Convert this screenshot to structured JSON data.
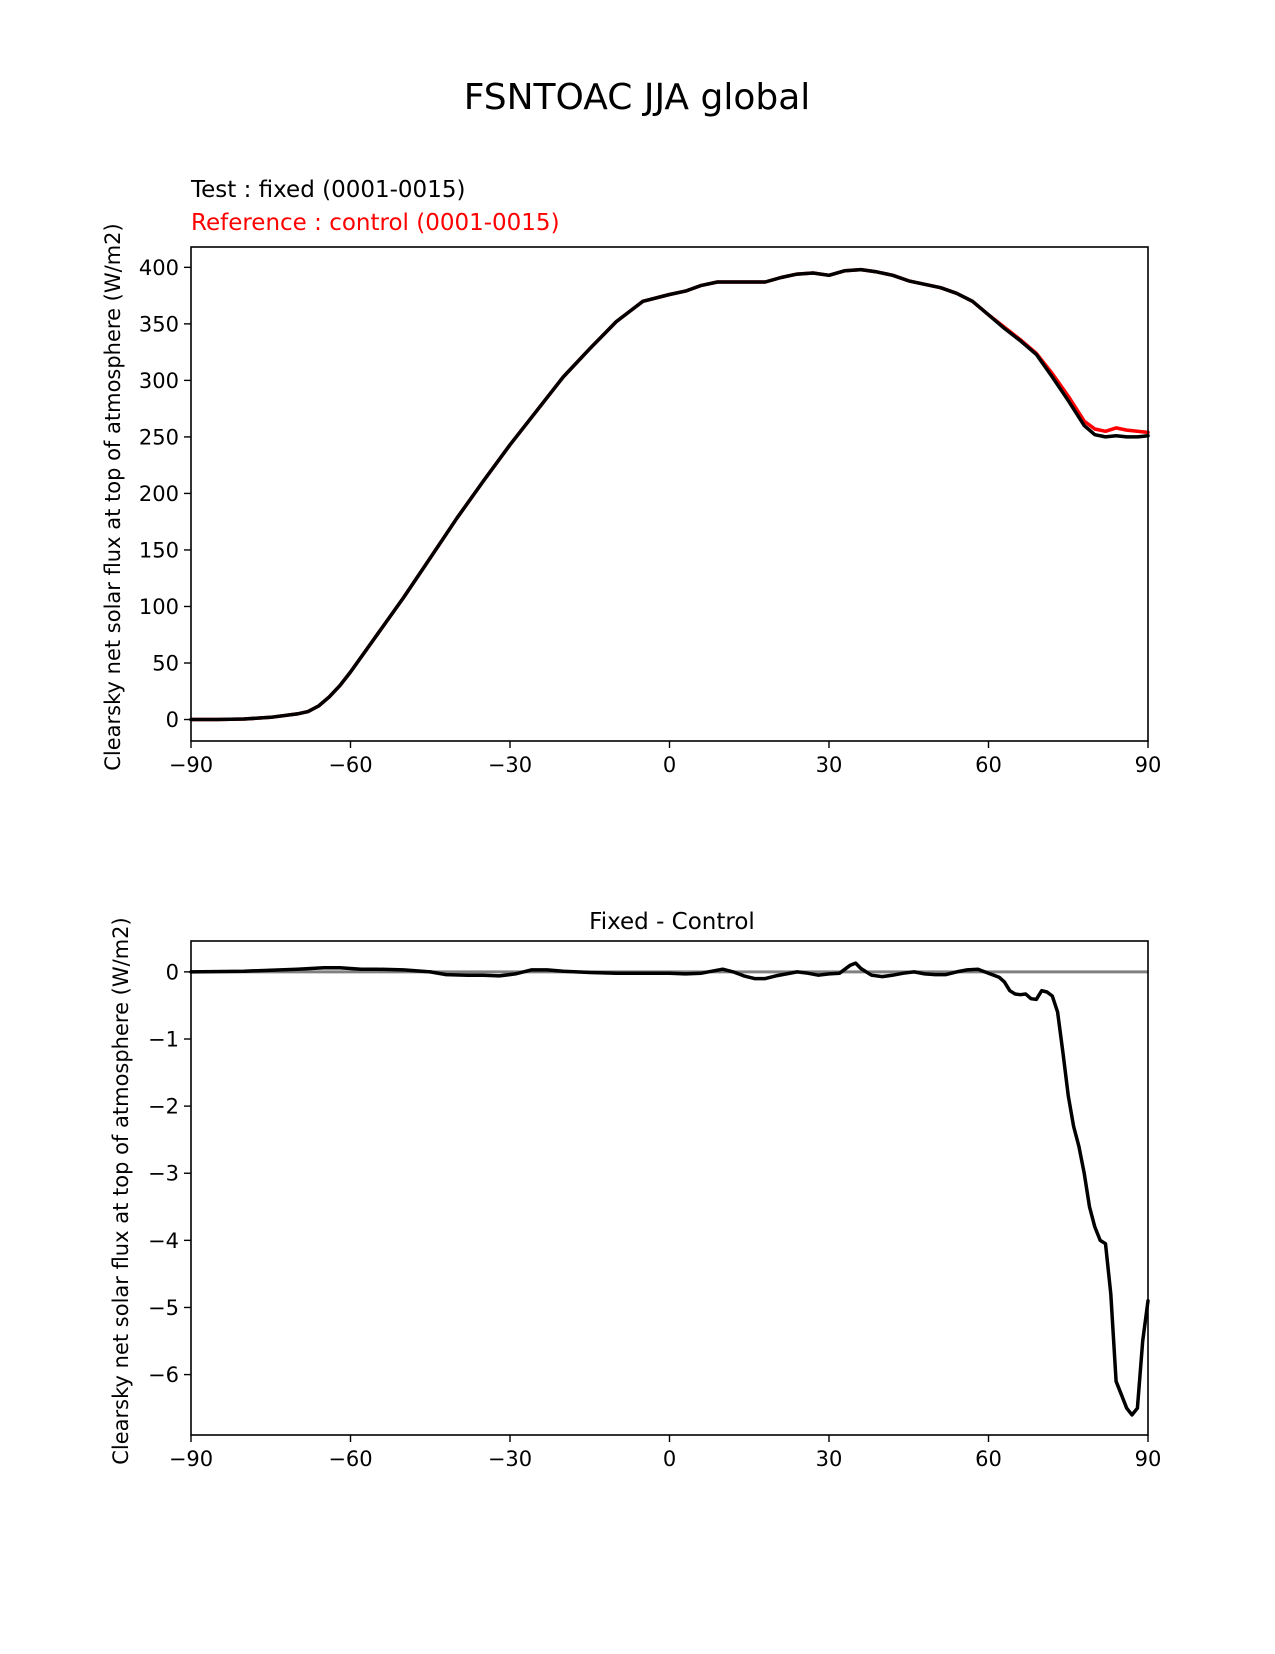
{
  "figure": {
    "title": "FSNTOAC JJA global"
  },
  "chart_data": [
    {
      "type": "line",
      "title": "",
      "test_label": "Test : fixed (0001-0015)",
      "reference_label": "Reference : control (0001-0015)",
      "xlabel": "",
      "ylabel": "Clearsky net solar flux at top of atmosphere (W/m2)",
      "xlim": [
        -90,
        90
      ],
      "ylim": [
        -19,
        418
      ],
      "xticks": [
        -90,
        -60,
        -30,
        0,
        30,
        60,
        90
      ],
      "xtick_labels": [
        "−90",
        "−60",
        "−30",
        "0",
        "30",
        "60",
        "90"
      ],
      "yticks": [
        0,
        50,
        100,
        150,
        200,
        250,
        300,
        350,
        400
      ],
      "ytick_labels": [
        "0",
        "50",
        "100",
        "150",
        "200",
        "250",
        "300",
        "350",
        "400"
      ],
      "grid": false,
      "series": [
        {
          "role": "reference",
          "color": "#ff0000",
          "x": [
            -90,
            -85,
            -80,
            -75,
            -70,
            -68,
            -66,
            -64,
            -62,
            -60,
            -55,
            -50,
            -45,
            -40,
            -35,
            -30,
            -25,
            -20,
            -15,
            -10,
            -5,
            0,
            3,
            6,
            9,
            12,
            15,
            18,
            21,
            24,
            27,
            30,
            33,
            36,
            39,
            42,
            45,
            48,
            51,
            54,
            57,
            60,
            63,
            66,
            69,
            72,
            75,
            78,
            80,
            82,
            84,
            86,
            88,
            90
          ],
          "y": [
            0,
            0,
            0.5,
            2,
            5,
            7,
            12,
            20,
            30,
            42,
            75,
            108,
            143,
            178,
            211,
            243,
            273,
            303,
            328,
            352,
            370,
            376,
            379,
            384,
            387,
            387,
            387,
            387,
            391,
            394,
            395,
            393,
            397,
            398,
            396,
            393,
            388,
            385,
            382,
            377,
            370,
            358,
            347,
            336,
            324,
            306,
            286,
            264,
            257,
            255,
            258,
            256,
            255,
            254
          ]
        },
        {
          "role": "test",
          "color": "#000000",
          "x": [
            -90,
            -85,
            -80,
            -75,
            -70,
            -68,
            -66,
            -64,
            -62,
            -60,
            -55,
            -50,
            -45,
            -40,
            -35,
            -30,
            -25,
            -20,
            -15,
            -10,
            -5,
            0,
            3,
            6,
            9,
            12,
            15,
            18,
            21,
            24,
            27,
            30,
            33,
            36,
            39,
            42,
            45,
            48,
            51,
            54,
            57,
            60,
            63,
            66,
            69,
            72,
            75,
            78,
            80,
            82,
            84,
            86,
            88,
            90
          ],
          "y": [
            0,
            0,
            0.5,
            2,
            5,
            7,
            12,
            20,
            30,
            42,
            75,
            108,
            143,
            178,
            211,
            243,
            273,
            303,
            328,
            352,
            370,
            376,
            379,
            384,
            387,
            387,
            387,
            387,
            391,
            394,
            395,
            393,
            397,
            398,
            396,
            393,
            388,
            385,
            382,
            377,
            370,
            358,
            346,
            335,
            323,
            303,
            282,
            260,
            252,
            250,
            251,
            250,
            250,
            251
          ]
        }
      ]
    },
    {
      "type": "line",
      "title": "Fixed - Control",
      "xlabel": "",
      "ylabel": "Clearsky net solar flux at top of atmosphere (W/m2)",
      "xlim": [
        -90,
        90
      ],
      "ylim": [
        -6.9,
        0.46
      ],
      "xticks": [
        -90,
        -60,
        -30,
        0,
        30,
        60,
        90
      ],
      "xtick_labels": [
        "−90",
        "−60",
        "−30",
        "0",
        "30",
        "60",
        "90"
      ],
      "yticks": [
        0,
        -1,
        -2,
        -3,
        -4,
        -5,
        -6
      ],
      "ytick_labels": [
        "0",
        "−1",
        "−2",
        "−3",
        "−4",
        "−5",
        "−6"
      ],
      "grid": false,
      "zero_line": {
        "y": 0,
        "color": "#808080"
      },
      "series": [
        {
          "name": "",
          "color": "#000000",
          "x": [
            -90,
            -80,
            -70,
            -65,
            -62,
            -58,
            -55,
            -50,
            -45,
            -42,
            -38,
            -35,
            -32,
            -29,
            -26,
            -23,
            -20,
            -15,
            -10,
            -5,
            0,
            3,
            6,
            8,
            10,
            12,
            14,
            16,
            18,
            20,
            22,
            24,
            26,
            28,
            30,
            32,
            34,
            35,
            36,
            38,
            40,
            42,
            44,
            46,
            48,
            50,
            52,
            54,
            56,
            58,
            60,
            61,
            62,
            63,
            64,
            65,
            66,
            67,
            68,
            69,
            70,
            71,
            72,
            73,
            74,
            75,
            76,
            77,
            78,
            79,
            80,
            81,
            82,
            83,
            84,
            85,
            86,
            87,
            88,
            89,
            90
          ],
          "y": [
            0,
            0.01,
            0.04,
            0.06,
            0.06,
            0.04,
            0.04,
            0.03,
            0,
            -0.04,
            -0.05,
            -0.05,
            -0.06,
            -0.03,
            0.03,
            0.03,
            0.01,
            -0.01,
            -0.02,
            -0.02,
            -0.02,
            -0.03,
            -0.02,
            0.01,
            0.04,
            0,
            -0.06,
            -0.1,
            -0.1,
            -0.06,
            -0.03,
            0,
            -0.02,
            -0.05,
            -0.03,
            -0.02,
            0.1,
            0.13,
            0.05,
            -0.05,
            -0.07,
            -0.05,
            -0.02,
            0,
            -0.03,
            -0.04,
            -0.04,
            0,
            0.03,
            0.04,
            -0.02,
            -0.05,
            -0.08,
            -0.15,
            -0.28,
            -0.33,
            -0.34,
            -0.33,
            -0.4,
            -0.41,
            -0.28,
            -0.3,
            -0.36,
            -0.6,
            -1.2,
            -1.85,
            -2.3,
            -2.6,
            -3.0,
            -3.5,
            -3.8,
            -4.0,
            -4.05,
            -4.8,
            -6.1,
            -6.3,
            -6.5,
            -6.6,
            -6.5,
            -5.5,
            -4.9
          ]
        }
      ]
    }
  ]
}
